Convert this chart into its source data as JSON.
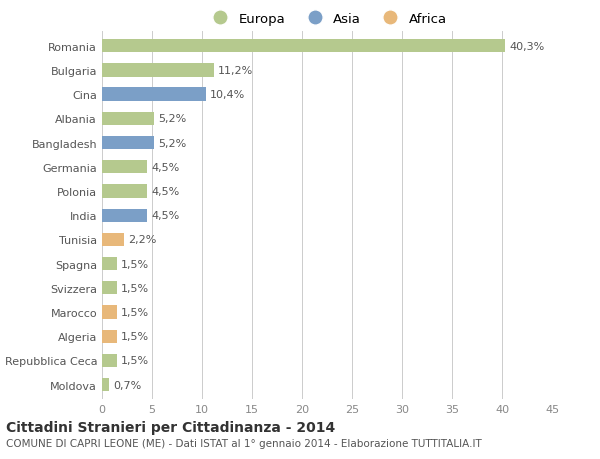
{
  "countries": [
    "Romania",
    "Bulgaria",
    "Cina",
    "Albania",
    "Bangladesh",
    "Germania",
    "Polonia",
    "India",
    "Tunisia",
    "Spagna",
    "Svizzera",
    "Marocco",
    "Algeria",
    "Repubblica Ceca",
    "Moldova"
  ],
  "values": [
    40.3,
    11.2,
    10.4,
    5.2,
    5.2,
    4.5,
    4.5,
    4.5,
    2.2,
    1.5,
    1.5,
    1.5,
    1.5,
    1.5,
    0.7
  ],
  "labels": [
    "40,3%",
    "11,2%",
    "10,4%",
    "5,2%",
    "5,2%",
    "4,5%",
    "4,5%",
    "4,5%",
    "2,2%",
    "1,5%",
    "1,5%",
    "1,5%",
    "1,5%",
    "1,5%",
    "0,7%"
  ],
  "continents": [
    "Europa",
    "Europa",
    "Asia",
    "Europa",
    "Asia",
    "Europa",
    "Europa",
    "Asia",
    "Africa",
    "Europa",
    "Europa",
    "Africa",
    "Africa",
    "Europa",
    "Europa"
  ],
  "colors": {
    "Europa": "#b5c98e",
    "Asia": "#7b9fc7",
    "Africa": "#e8b87a"
  },
  "legend_colors": {
    "Europa": "#b5c98e",
    "Asia": "#7b9fc7",
    "Africa": "#e8b87a"
  },
  "xlim": [
    0,
    45
  ],
  "xticks": [
    0,
    5,
    10,
    15,
    20,
    25,
    30,
    35,
    40,
    45
  ],
  "title": "Cittadini Stranieri per Cittadinanza - 2014",
  "subtitle": "COMUNE DI CAPRI LEONE (ME) - Dati ISTAT al 1° gennaio 2014 - Elaborazione TUTTITALIA.IT",
  "bg_color": "#ffffff",
  "grid_color": "#cccccc",
  "bar_height": 0.55,
  "label_fontsize": 8,
  "tick_fontsize": 8,
  "title_fontsize": 10,
  "subtitle_fontsize": 7.5
}
